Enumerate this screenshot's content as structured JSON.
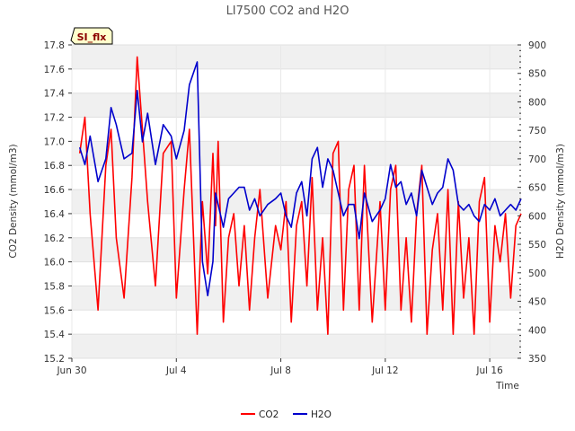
{
  "chart_data": {
    "type": "line",
    "title": "LI7500 CO2 and H2O",
    "badge": "SI_flx",
    "xlabel": "Time",
    "ylabel_left": "CO2 Density (mmol/m3)",
    "ylabel_right": "H2O Density (mmol/m3)",
    "xlim": [
      0,
      17.2
    ],
    "ylim_left": [
      15.2,
      17.8
    ],
    "ylim_right": [
      350,
      900
    ],
    "x_ticks": [
      {
        "value": 0,
        "label": "Jun 30"
      },
      {
        "value": 4,
        "label": "Jul 4"
      },
      {
        "value": 8,
        "label": "Jul 8"
      },
      {
        "value": 12,
        "label": "Jul 12"
      },
      {
        "value": 16,
        "label": "Jul 16"
      }
    ],
    "y_ticks_left": [
      "15.2",
      "15.4",
      "15.6",
      "15.8",
      "16.0",
      "16.2",
      "16.4",
      "16.6",
      "16.8",
      "17.0",
      "17.2",
      "17.4",
      "17.6",
      "17.8"
    ],
    "y_ticks_right": [
      "350",
      "400",
      "450",
      "500",
      "550",
      "600",
      "650",
      "700",
      "750",
      "800",
      "850",
      "900"
    ],
    "legend": [
      {
        "name": "CO2",
        "color": "#ff0000"
      },
      {
        "name": "H2O",
        "color": "#0000cc"
      }
    ],
    "series": [
      {
        "name": "CO2",
        "axis": "left",
        "color": "#ff0000",
        "x": [
          0.3,
          0.5,
          0.7,
          1.0,
          1.3,
          1.5,
          1.7,
          2.0,
          2.3,
          2.5,
          2.7,
          2.9,
          3.2,
          3.5,
          3.8,
          4.0,
          4.3,
          4.5,
          4.8,
          5.0,
          5.2,
          5.4,
          5.5,
          5.6,
          5.8,
          6.0,
          6.2,
          6.4,
          6.6,
          6.8,
          7.0,
          7.2,
          7.5,
          7.8,
          8.0,
          8.2,
          8.4,
          8.6,
          8.8,
          9.0,
          9.2,
          9.4,
          9.6,
          9.8,
          10.0,
          10.2,
          10.4,
          10.6,
          10.8,
          11.0,
          11.2,
          11.5,
          11.8,
          12.0,
          12.2,
          12.4,
          12.6,
          12.8,
          13.0,
          13.2,
          13.4,
          13.6,
          13.8,
          14.0,
          14.2,
          14.4,
          14.6,
          14.8,
          15.0,
          15.2,
          15.4,
          15.6,
          15.8,
          16.0,
          16.2,
          16.4,
          16.6,
          16.8,
          17.0,
          17.2
        ],
        "y": [
          16.9,
          17.2,
          16.4,
          15.6,
          16.8,
          17.1,
          16.2,
          15.7,
          16.7,
          17.7,
          17.1,
          16.5,
          15.8,
          16.9,
          17.0,
          15.7,
          16.6,
          17.1,
          15.4,
          16.5,
          15.9,
          16.9,
          16.3,
          17.0,
          15.5,
          16.2,
          16.4,
          15.8,
          16.3,
          15.6,
          16.2,
          16.6,
          15.7,
          16.3,
          16.1,
          16.5,
          15.5,
          16.3,
          16.5,
          15.8,
          16.7,
          15.6,
          16.2,
          15.4,
          16.9,
          17.0,
          15.6,
          16.6,
          16.8,
          15.6,
          16.8,
          15.5,
          16.5,
          15.6,
          16.6,
          16.8,
          15.6,
          16.2,
          15.5,
          16.4,
          16.8,
          15.4,
          16.1,
          16.4,
          15.6,
          16.6,
          15.4,
          16.5,
          15.7,
          16.2,
          15.4,
          16.5,
          16.7,
          15.5,
          16.3,
          16.0,
          16.4,
          15.7,
          16.3,
          16.4
        ]
      },
      {
        "name": "H2O",
        "axis": "right",
        "color": "#0000cc",
        "x": [
          0.3,
          0.5,
          0.7,
          1.0,
          1.3,
          1.5,
          1.7,
          2.0,
          2.3,
          2.5,
          2.7,
          2.9,
          3.2,
          3.5,
          3.8,
          4.0,
          4.3,
          4.5,
          4.8,
          5.0,
          5.2,
          5.4,
          5.5,
          5.6,
          5.8,
          6.0,
          6.2,
          6.4,
          6.6,
          6.8,
          7.0,
          7.2,
          7.5,
          7.8,
          8.0,
          8.2,
          8.4,
          8.6,
          8.8,
          9.0,
          9.2,
          9.4,
          9.6,
          9.8,
          10.0,
          10.2,
          10.4,
          10.6,
          10.8,
          11.0,
          11.2,
          11.5,
          11.8,
          12.0,
          12.2,
          12.4,
          12.6,
          12.8,
          13.0,
          13.2,
          13.4,
          13.6,
          13.8,
          14.0,
          14.2,
          14.4,
          14.6,
          14.8,
          15.0,
          15.2,
          15.4,
          15.6,
          15.8,
          16.0,
          16.2,
          16.4,
          16.6,
          16.8,
          17.0,
          17.2
        ],
        "y": [
          720,
          690,
          740,
          660,
          700,
          790,
          760,
          700,
          710,
          820,
          730,
          780,
          690,
          760,
          740,
          700,
          750,
          830,
          870,
          520,
          460,
          520,
          640,
          620,
          580,
          630,
          640,
          650,
          650,
          610,
          630,
          600,
          620,
          630,
          640,
          600,
          580,
          640,
          660,
          600,
          700,
          720,
          650,
          700,
          680,
          640,
          600,
          620,
          620,
          560,
          640,
          590,
          610,
          630,
          690,
          650,
          660,
          620,
          640,
          600,
          680,
          650,
          620,
          640,
          650,
          700,
          680,
          620,
          610,
          620,
          600,
          590,
          620,
          610,
          630,
          600,
          610,
          620,
          610,
          630
        ]
      }
    ]
  }
}
